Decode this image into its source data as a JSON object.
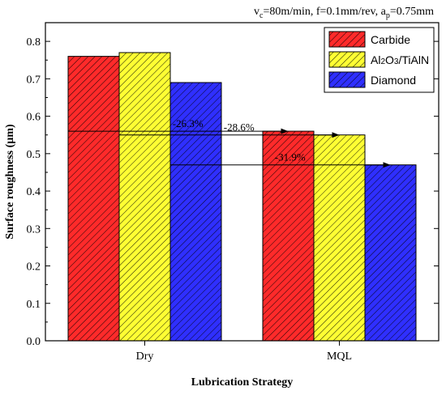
{
  "header": {
    "params_vc": "v",
    "params_vc_sub": "c",
    "params_mid": "=80m/min, f=0.1mm/rev, a",
    "params_ap_sub": "p",
    "params_end": "=0.75mm"
  },
  "chart_data": {
    "type": "bar",
    "categories": [
      "Dry",
      "MQL"
    ],
    "xlabel": "Lubrication Strategy",
    "ylabel": "Surface roughness (µm)",
    "ylim": [
      0,
      0.85
    ],
    "yticks": [
      0.0,
      0.1,
      0.2,
      0.3,
      0.4,
      0.5,
      0.6,
      0.7,
      0.8
    ],
    "ytick_labels": [
      "0.0",
      "0.1",
      "0.2",
      "0.3",
      "0.4",
      "0.5",
      "0.6",
      "0.7",
      "0.8"
    ],
    "grid": false,
    "legend_position": "top-right",
    "series": [
      {
        "name": "Carbide",
        "values": [
          0.76,
          0.56
        ],
        "color": "#ff2a2a"
      },
      {
        "name": "Al2O3/TiAlN",
        "values": [
          0.77,
          0.55
        ],
        "color": "#ffff33"
      },
      {
        "name": "Diamond",
        "values": [
          0.69,
          0.47
        ],
        "color": "#2f2fff"
      }
    ],
    "annotations": [
      {
        "text": "-26.3%",
        "series": 0
      },
      {
        "text": "-28.6%",
        "series": 1
      },
      {
        "text": "-31.9%",
        "series": 2
      }
    ]
  }
}
